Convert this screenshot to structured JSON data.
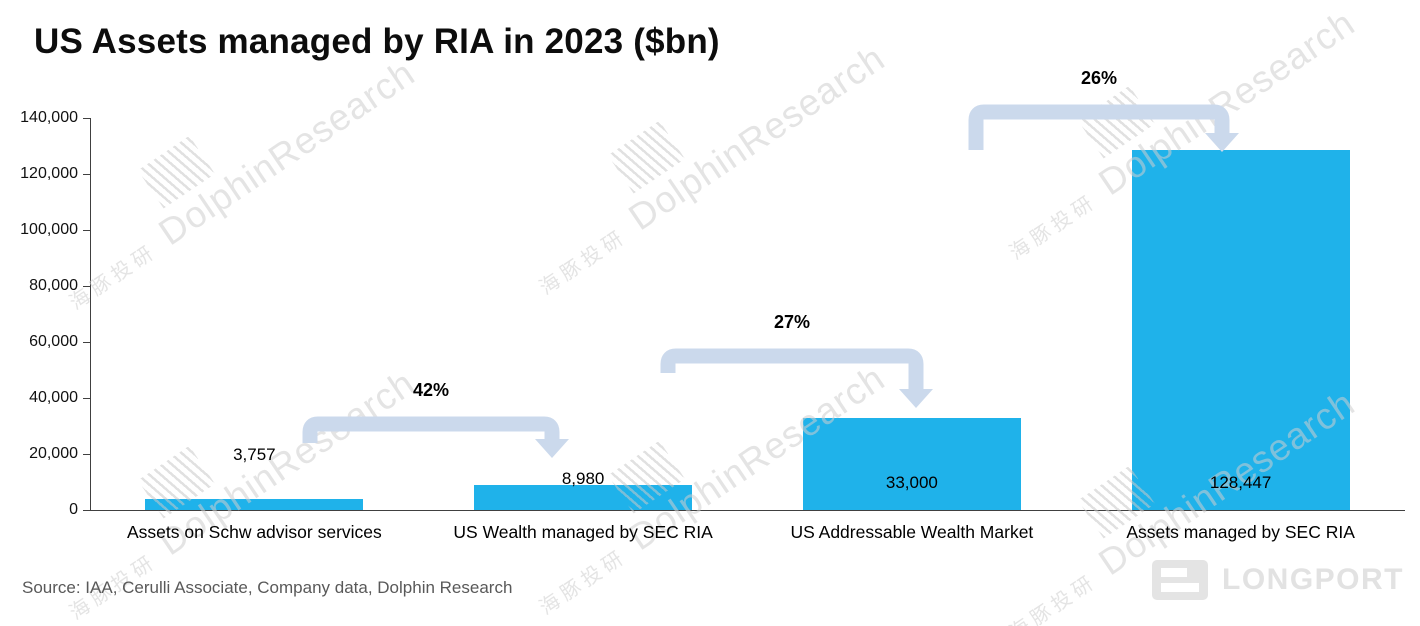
{
  "page": {
    "title": "US Assets managed by RIA in 2023 ($bn)",
    "source_note": "Source: IAA, Cerulli Associate, Company data, Dolphin Research",
    "brand": "LONGPORT",
    "watermark": {
      "cn": "海豚投研",
      "en": "DolphinResearch"
    }
  },
  "colors": {
    "bar": "#1FB2EA",
    "arrow": "#CBD9EC",
    "axis": "#404040",
    "source_text": "#595959",
    "brand_gray": "#E2E2E2"
  },
  "chart_data": {
    "type": "bar",
    "title": "US Assets managed by RIA in 2023 ($bn)",
    "categories": [
      "Assets on Schw advisor services",
      "US Wealth managed by SEC RIA",
      "US Addressable Wealth Market",
      "Assets managed by SEC RIA"
    ],
    "values": [
      3757,
      8980,
      33000,
      128447
    ],
    "value_labels": [
      "3,757",
      "8,980",
      "33,000",
      "128,447"
    ],
    "xlabel": "",
    "ylabel": "",
    "ylim": [
      0,
      140000
    ],
    "ytick_interval": 20000,
    "yticks": [
      "0",
      "20,000",
      "40,000",
      "60,000",
      "80,000",
      "100,000",
      "120,000",
      "140,000"
    ],
    "grid": false,
    "legend": false,
    "annotations": [
      {
        "label": "42%",
        "from_index": 0,
        "to_index": 1
      },
      {
        "label": "27%",
        "from_index": 1,
        "to_index": 2
      },
      {
        "label": "26%",
        "from_index": 2,
        "to_index": 3
      }
    ]
  }
}
